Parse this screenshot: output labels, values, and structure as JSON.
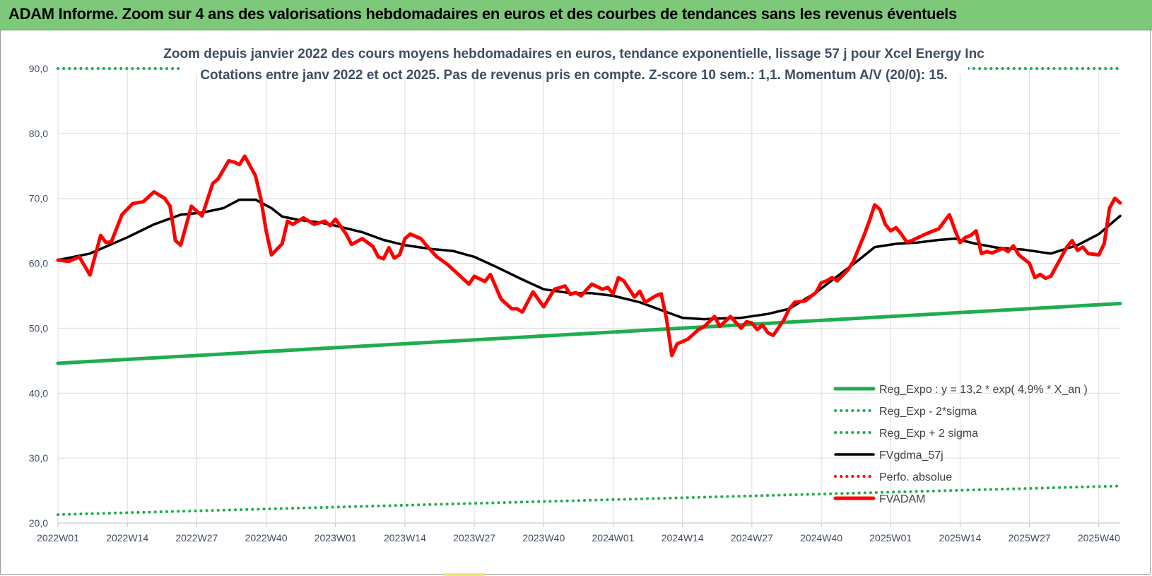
{
  "header": {
    "title": "ADAM Informe. Zoom sur 4 ans des valorisations hebdomadaires en euros et des courbes de tendances sans les revenus éventuels"
  },
  "chart_data": {
    "type": "line",
    "title": "Zoom depuis janvier 2022 des cours moyens hebdomadaires en euros, tendance exponentielle, lissage 57 j pour Xcel Energy Inc",
    "subtitle": "Cotations entre janv 2022 et oct 2025. Pas de revenus pris en compte. Z-score 10 sem.: 1,1. Momentum A/V (20/0): 15.",
    "ylim": [
      20,
      90
    ],
    "y_ticks": [
      "20,0",
      "30,0",
      "40,0",
      "50,0",
      "60,0",
      "70,0",
      "80,0",
      "90,0"
    ],
    "x_ticks": [
      "2022W01",
      "2022W14",
      "2022W27",
      "2022W40",
      "2023W01",
      "2023W14",
      "2023W27",
      "2023W40",
      "2024W01",
      "2024W14",
      "2024W27",
      "2024W40",
      "2025W01",
      "2025W14",
      "2025W27",
      "2025W40"
    ],
    "n_weeks": 200,
    "legend_position": "bottom-right",
    "series": [
      {
        "name": "Reg_Expo : y = 13,2 * exp( 4,9% * X_an )",
        "color": "#1fad4f",
        "style": "solid-thick",
        "points": [
          [
            0,
            44.6
          ],
          [
            199,
            53.8
          ]
        ]
      },
      {
        "name": "Reg_Exp - 2*sigma",
        "color": "#1fad4f",
        "style": "dotted",
        "points": [
          [
            0,
            21.3
          ],
          [
            199,
            25.7
          ]
        ]
      },
      {
        "name": "Reg_Exp + 2 sigma",
        "color": "#1fad4f",
        "style": "dotted",
        "points": [
          [
            0,
            90.0
          ],
          [
            199,
            90.0
          ]
        ]
      },
      {
        "name": "FVgdma_57j",
        "color": "#000000",
        "style": "solid",
        "points": [
          [
            0,
            60.5
          ],
          [
            6,
            61.5
          ],
          [
            13,
            64.0
          ],
          [
            18,
            66.0
          ],
          [
            23,
            67.5
          ],
          [
            27,
            67.8
          ],
          [
            31,
            68.5
          ],
          [
            34,
            69.8
          ],
          [
            37,
            69.8
          ],
          [
            40,
            68.5
          ],
          [
            42,
            67.2
          ],
          [
            45,
            66.7
          ],
          [
            49,
            66.3
          ],
          [
            52,
            65.8
          ],
          [
            57,
            64.8
          ],
          [
            61,
            63.6
          ],
          [
            65,
            62.8
          ],
          [
            70,
            62.2
          ],
          [
            74,
            61.9
          ],
          [
            78,
            61.0
          ],
          [
            82,
            59.5
          ],
          [
            87,
            57.5
          ],
          [
            91,
            56.0
          ],
          [
            96,
            55.4
          ],
          [
            100,
            55.4
          ],
          [
            104,
            55.0
          ],
          [
            109,
            54.0
          ],
          [
            114,
            52.5
          ],
          [
            117,
            51.6
          ],
          [
            121,
            51.4
          ],
          [
            124,
            51.5
          ],
          [
            128,
            51.6
          ],
          [
            133,
            52.2
          ],
          [
            137,
            53.0
          ],
          [
            142,
            55.5
          ],
          [
            146,
            58.0
          ],
          [
            150,
            60.5
          ],
          [
            153,
            62.5
          ],
          [
            157,
            63.0
          ],
          [
            161,
            63.2
          ],
          [
            165,
            63.6
          ],
          [
            168,
            63.8
          ],
          [
            172,
            63.0
          ],
          [
            176,
            62.4
          ],
          [
            181,
            62.1
          ],
          [
            186,
            61.5
          ],
          [
            191,
            62.8
          ],
          [
            195,
            64.5
          ],
          [
            199,
            67.3
          ]
        ]
      },
      {
        "name": "Perfo. absolue",
        "color": "#ff0000",
        "style": "dotted",
        "points": []
      },
      {
        "name": "FVADAM",
        "color": "#ff0000",
        "style": "solid-thick",
        "points": [
          [
            0,
            60.5
          ],
          [
            2,
            60.3
          ],
          [
            4,
            61.0
          ],
          [
            6,
            58.2
          ],
          [
            8,
            64.3
          ],
          [
            9,
            63.2
          ],
          [
            10,
            63.3
          ],
          [
            12,
            67.5
          ],
          [
            14,
            69.2
          ],
          [
            16,
            69.5
          ],
          [
            18,
            71.0
          ],
          [
            20,
            70.0
          ],
          [
            21,
            68.8
          ],
          [
            22,
            63.5
          ],
          [
            23,
            62.8
          ],
          [
            25,
            68.8
          ],
          [
            27,
            67.3
          ],
          [
            29,
            72.3
          ],
          [
            30,
            73.0
          ],
          [
            32,
            75.8
          ],
          [
            33,
            75.6
          ],
          [
            34,
            75.2
          ],
          [
            35,
            76.5
          ],
          [
            37,
            73.5
          ],
          [
            38,
            70.0
          ],
          [
            39,
            65.0
          ],
          [
            40,
            61.3
          ],
          [
            42,
            63.0
          ],
          [
            43,
            66.5
          ],
          [
            44,
            66.0
          ],
          [
            46,
            67.0
          ],
          [
            48,
            66.0
          ],
          [
            50,
            66.5
          ],
          [
            51,
            65.8
          ],
          [
            52,
            66.8
          ],
          [
            54,
            64.5
          ],
          [
            55,
            62.9
          ],
          [
            57,
            63.8
          ],
          [
            59,
            62.6
          ],
          [
            60,
            61.0
          ],
          [
            61,
            60.7
          ],
          [
            62,
            62.4
          ],
          [
            63,
            60.8
          ],
          [
            64,
            61.3
          ],
          [
            65,
            63.8
          ],
          [
            66,
            64.5
          ],
          [
            68,
            63.8
          ],
          [
            69,
            62.8
          ],
          [
            71,
            61.0
          ],
          [
            73,
            59.8
          ],
          [
            75,
            58.3
          ],
          [
            77,
            56.8
          ],
          [
            78,
            58.0
          ],
          [
            80,
            57.2
          ],
          [
            81,
            58.3
          ],
          [
            83,
            54.5
          ],
          [
            85,
            53.0
          ],
          [
            86,
            53.0
          ],
          [
            87,
            52.5
          ],
          [
            89,
            55.6
          ],
          [
            91,
            53.3
          ],
          [
            93,
            56.0
          ],
          [
            95,
            56.5
          ],
          [
            96,
            55.2
          ],
          [
            97,
            55.5
          ],
          [
            98,
            55.0
          ],
          [
            100,
            56.8
          ],
          [
            102,
            56.0
          ],
          [
            103,
            56.3
          ],
          [
            104,
            55.3
          ],
          [
            105,
            57.8
          ],
          [
            106,
            57.3
          ],
          [
            108,
            54.8
          ],
          [
            109,
            55.7
          ],
          [
            110,
            54.0
          ],
          [
            112,
            55.0
          ],
          [
            113,
            55.3
          ],
          [
            114,
            51.5
          ],
          [
            115,
            45.8
          ],
          [
            116,
            47.6
          ],
          [
            118,
            48.3
          ],
          [
            120,
            49.8
          ],
          [
            121,
            50.2
          ],
          [
            123,
            51.8
          ],
          [
            124,
            50.3
          ],
          [
            126,
            51.8
          ],
          [
            128,
            50.0
          ],
          [
            129,
            51.0
          ],
          [
            130,
            50.8
          ],
          [
            131,
            49.8
          ],
          [
            132,
            50.5
          ],
          [
            133,
            49.3
          ],
          [
            134,
            48.9
          ],
          [
            136,
            51.3
          ],
          [
            137,
            53.0
          ],
          [
            138,
            54.0
          ],
          [
            140,
            54.2
          ],
          [
            142,
            55.5
          ],
          [
            143,
            57.0
          ],
          [
            144,
            57.3
          ],
          [
            145,
            57.8
          ],
          [
            146,
            57.3
          ],
          [
            148,
            59.0
          ],
          [
            149,
            60.3
          ],
          [
            151,
            64.3
          ],
          [
            152,
            66.5
          ],
          [
            153,
            69.0
          ],
          [
            154,
            68.3
          ],
          [
            155,
            66.0
          ],
          [
            156,
            65.0
          ],
          [
            157,
            65.5
          ],
          [
            158,
            64.5
          ],
          [
            159,
            63.3
          ],
          [
            160,
            63.5
          ],
          [
            162,
            64.3
          ],
          [
            164,
            65.0
          ],
          [
            165,
            65.3
          ],
          [
            167,
            67.5
          ],
          [
            168,
            65.2
          ],
          [
            169,
            63.2
          ],
          [
            170,
            64.0
          ],
          [
            171,
            64.3
          ],
          [
            172,
            65.0
          ],
          [
            173,
            61.5
          ],
          [
            174,
            61.8
          ],
          [
            175,
            61.6
          ],
          [
            177,
            62.3
          ],
          [
            178,
            61.8
          ],
          [
            179,
            62.7
          ],
          [
            180,
            61.3
          ],
          [
            182,
            60.0
          ],
          [
            183,
            57.8
          ],
          [
            184,
            58.3
          ],
          [
            185,
            57.7
          ],
          [
            186,
            58.0
          ],
          [
            188,
            61.0
          ],
          [
            189,
            62.5
          ],
          [
            190,
            63.5
          ],
          [
            191,
            62.0
          ],
          [
            192,
            62.5
          ],
          [
            193,
            61.5
          ],
          [
            195,
            61.3
          ],
          [
            196,
            63.0
          ],
          [
            197,
            68.5
          ],
          [
            198,
            70.0
          ],
          [
            199,
            69.3
          ]
        ]
      }
    ]
  }
}
